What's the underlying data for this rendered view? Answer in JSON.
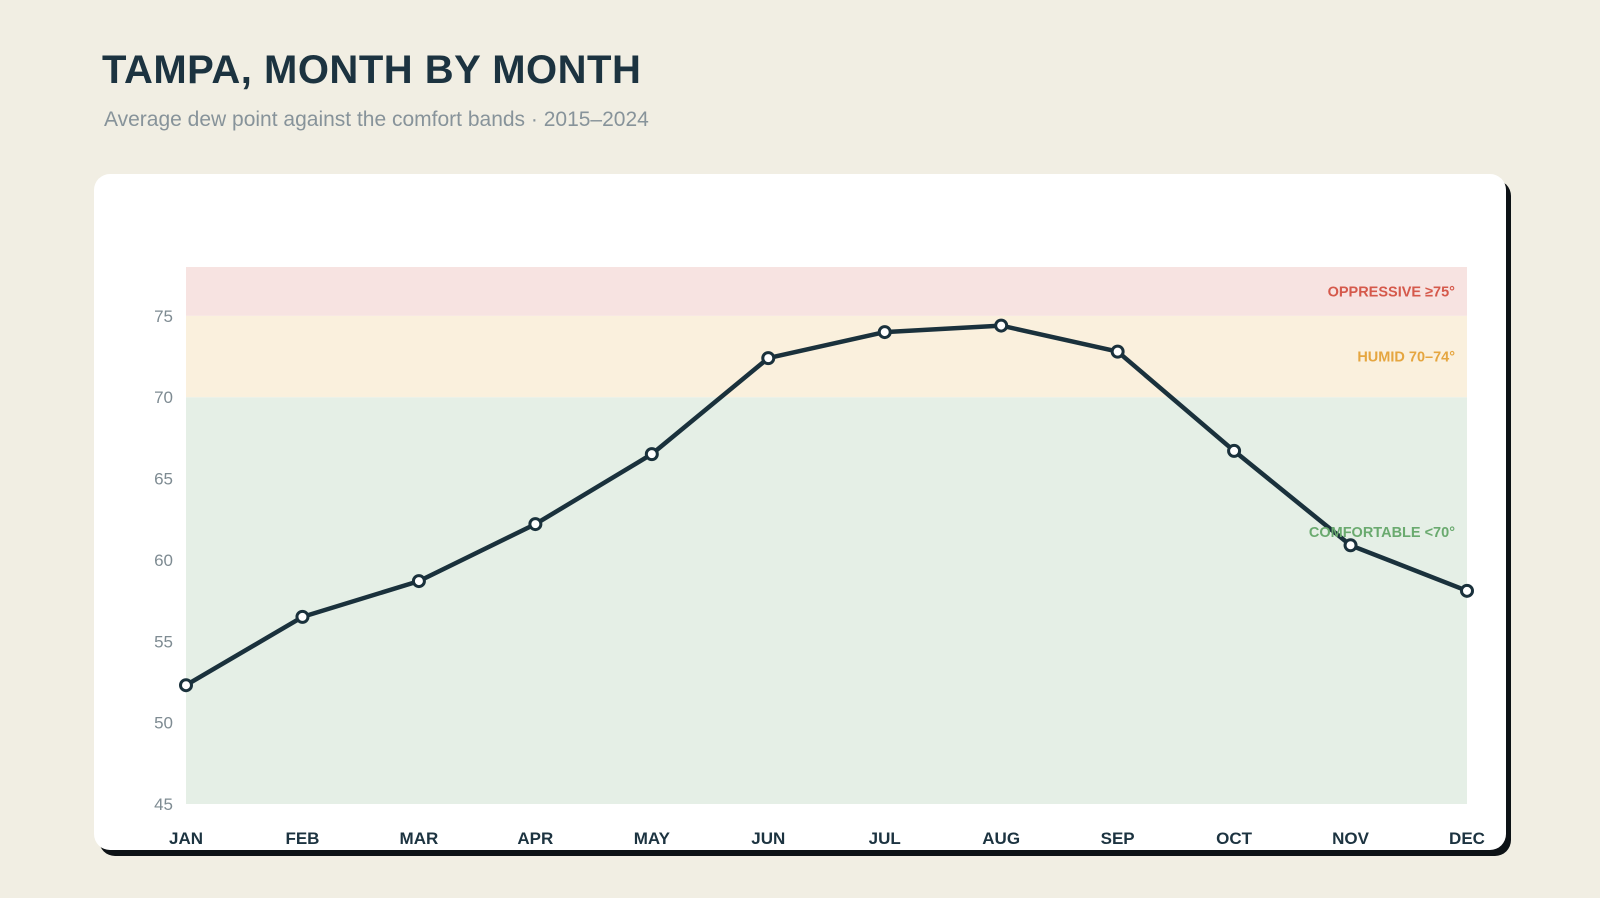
{
  "header": {
    "title": "TAMPA, MONTH BY MONTH",
    "subtitle": "Average dew point against the comfort bands · 2015–2024"
  },
  "chart_data": {
    "type": "line",
    "categories": [
      "JAN",
      "FEB",
      "MAR",
      "APR",
      "MAY",
      "JUN",
      "JUL",
      "AUG",
      "SEP",
      "OCT",
      "NOV",
      "DEC"
    ],
    "series": [
      {
        "values": [
          52.3,
          56.5,
          58.7,
          62.2,
          66.5,
          72.4,
          74.0,
          74.4,
          72.8,
          66.7,
          60.9,
          58.1
        ]
      }
    ],
    "ylim": [
      45,
      78
    ],
    "yticks": [
      45,
      50,
      55,
      60,
      65,
      70,
      75
    ],
    "bands": [
      {
        "label": "COMFORTABLE <70°",
        "from": 45,
        "to": 70,
        "fill": "#e5efe6",
        "text_color": "#6aaa6f"
      },
      {
        "label": "HUMID 70–74°",
        "from": 70,
        "to": 75,
        "fill": "#faf0dd",
        "text_color": "#e5a640"
      },
      {
        "label": "OPPRESSIVE ≥75°",
        "from": 75,
        "to": 78,
        "fill": "#f7e3e1",
        "text_color": "#d5594b"
      }
    ],
    "line_color": "#1a313c",
    "legend": "none",
    "grid": false
  }
}
